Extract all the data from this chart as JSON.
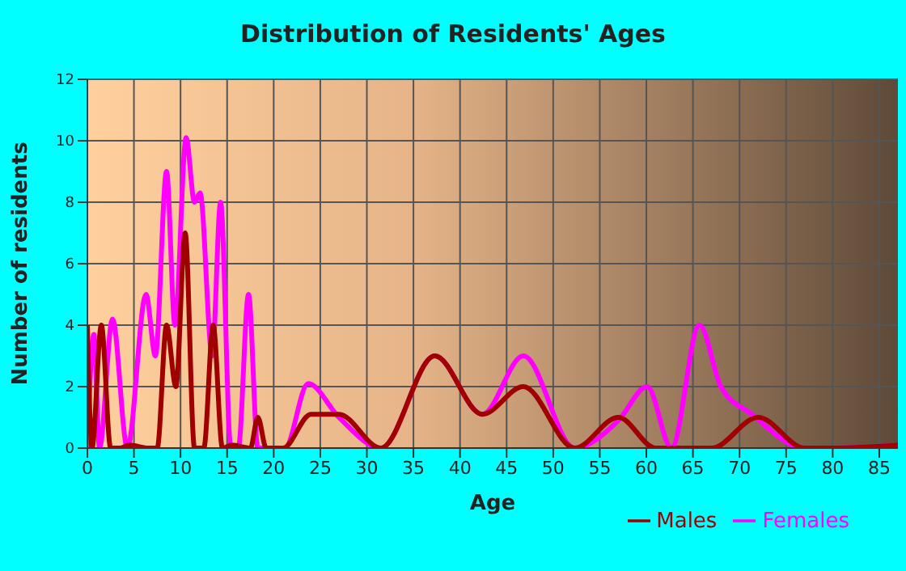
{
  "chart_data": {
    "type": "line",
    "title": "Distribution of Residents' Ages",
    "xlabel": "Age",
    "ylabel": "Number of residents",
    "xlim": [
      0,
      87
    ],
    "xticks": [
      0,
      5,
      10,
      15,
      20,
      25,
      30,
      35,
      40,
      45,
      50,
      55,
      60,
      65,
      70,
      75,
      80,
      85
    ],
    "ylim": [
      0,
      12
    ],
    "yticks": [
      0,
      2,
      4,
      6,
      8,
      10,
      12
    ],
    "grid": true,
    "legend": "bottom",
    "marker": "none",
    "line_style": "solid",
    "series": [
      {
        "name": "Males",
        "color": "#a00000",
        "x": [
          0,
          0.5,
          1.5,
          2.5,
          3.5,
          4.5,
          6.5,
          7.5,
          8.5,
          9.5,
          10.5,
          11.5,
          12.5,
          13.5,
          14.5,
          15.5,
          17.5,
          18.3,
          19.2,
          21,
          24,
          27,
          31.5,
          37.3,
          42.4,
          46.8,
          52.3,
          57,
          61,
          67,
          72,
          77,
          80,
          87
        ],
        "values": [
          4,
          0,
          4,
          0,
          0,
          0.1,
          0,
          0,
          4,
          2,
          7,
          0,
          0,
          4,
          0,
          0.1,
          0,
          1,
          0,
          0,
          1.1,
          1.1,
          0,
          3,
          1.1,
          2,
          0,
          1,
          0,
          0,
          1,
          0,
          0,
          0.1
        ]
      },
      {
        "name": "Females",
        "color": "#ff00ff",
        "x": [
          0,
          0.7,
          1.3,
          2.7,
          4.3,
          6.3,
          7.3,
          8.5,
          9.4,
          10.6,
          11.5,
          12.1,
          13.4,
          14.3,
          15.4,
          16.2,
          17.3,
          18.3,
          19.5,
          21.2,
          23.7,
          27,
          31.5,
          37.3,
          42.4,
          46.8,
          52.3,
          57,
          60.1,
          62.7,
          65.7,
          68,
          71.3,
          77,
          80,
          87
        ],
        "values": [
          0,
          3.7,
          0,
          4.2,
          0,
          5,
          3,
          9,
          4,
          10.1,
          8,
          8.3,
          3,
          8,
          0,
          0,
          5,
          0,
          0,
          0,
          2.1,
          1,
          0,
          3,
          1.1,
          3,
          0,
          0.9,
          2,
          0,
          4,
          2,
          1.1,
          0,
          0,
          0.1
        ]
      }
    ]
  }
}
